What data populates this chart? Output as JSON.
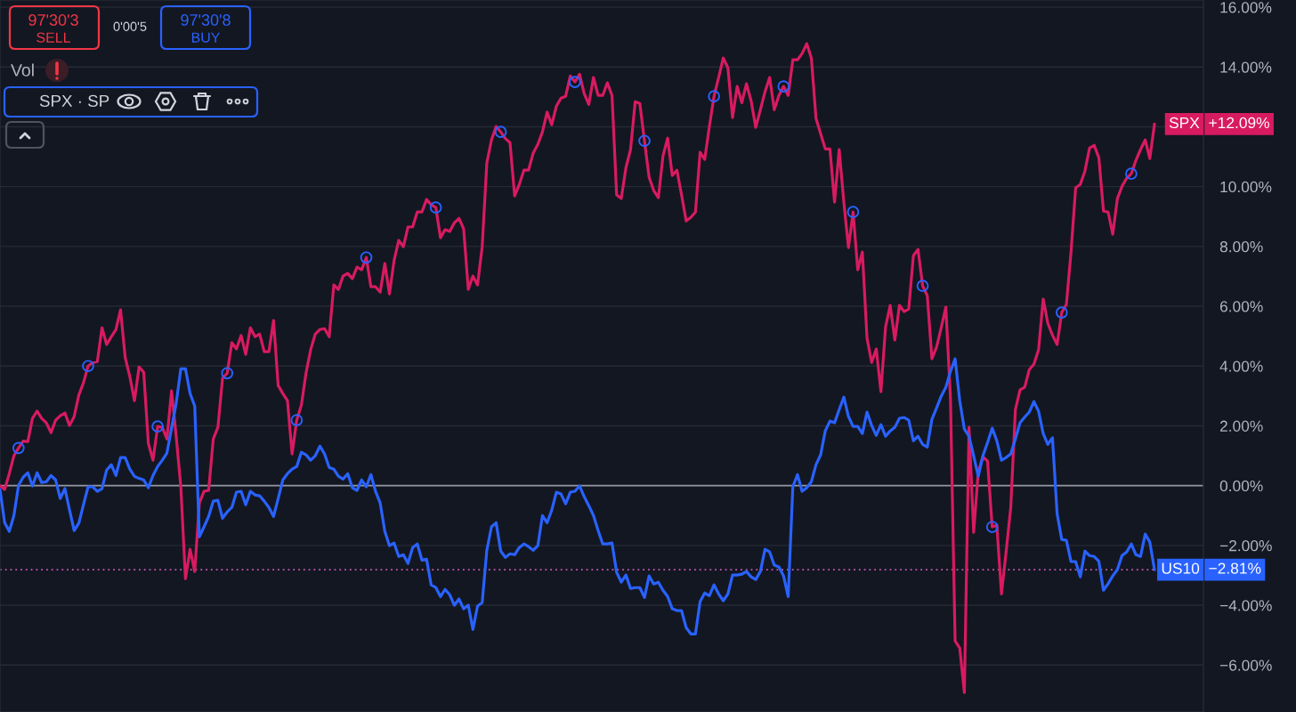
{
  "chart_data": {
    "type": "line",
    "categories": [
      null,
      null,
      null,
      null,
      null,
      null,
      null,
      null,
      null,
      null,
      null,
      null,
      null,
      null,
      null,
      null,
      null,
      null,
      null,
      null,
      null,
      null,
      null,
      null,
      null,
      null,
      null,
      null,
      null,
      null,
      null,
      null,
      null,
      null,
      null,
      null,
      null,
      null,
      null,
      null,
      null,
      null,
      null,
      null,
      null,
      null,
      null,
      null,
      null,
      null,
      null,
      null,
      null,
      null,
      null,
      null,
      null,
      null,
      null,
      null,
      null,
      null,
      null,
      null,
      null,
      null,
      null,
      null,
      null,
      null,
      null,
      null,
      null,
      null,
      null,
      null,
      null,
      null,
      null,
      null,
      null,
      null,
      null,
      null,
      null,
      null,
      null,
      null,
      null,
      null,
      null,
      null,
      null,
      null,
      null,
      null,
      null,
      null,
      null,
      null,
      null,
      null,
      null,
      null,
      null,
      null,
      null,
      null,
      null,
      null,
      null,
      null,
      null,
      null,
      null,
      null,
      null,
      null,
      null,
      null,
      null,
      null,
      null,
      null,
      null,
      null,
      null,
      null,
      null,
      null,
      null,
      null,
      null,
      null,
      null,
      null,
      null,
      null,
      null,
      null,
      null,
      null,
      null,
      null,
      null,
      null,
      null,
      null,
      null,
      null,
      null,
      null,
      null,
      null,
      null,
      null,
      null,
      null,
      null,
      null,
      null,
      null,
      null,
      null,
      null,
      null,
      null,
      null,
      null,
      null,
      null,
      null,
      null,
      null,
      null,
      null,
      null,
      null,
      null,
      null,
      null,
      null,
      null,
      null,
      null,
      null,
      null,
      null,
      null,
      null,
      null,
      null,
      null,
      null,
      null,
      null,
      null,
      null,
      null,
      null,
      null,
      null,
      null,
      null,
      null,
      null,
      null,
      null,
      null,
      null,
      null,
      null,
      null,
      null,
      null,
      null,
      null,
      null,
      null,
      null,
      null,
      null,
      null,
      null,
      null,
      null,
      null,
      null,
      null,
      null,
      null,
      null,
      null,
      null,
      null,
      null,
      null,
      null,
      null,
      null,
      null,
      null,
      null,
      null,
      null,
      null,
      null,
      null,
      null,
      null
    ],
    "series": [
      {
        "name": "SPX",
        "color": "#d81b60",
        "values": [
          0.0,
          -0.13,
          0.4,
          1.0,
          1.26,
          1.49,
          1.47,
          2.25,
          2.49,
          2.25,
          2.1,
          1.77,
          2.19,
          2.34,
          2.43,
          2.01,
          2.31,
          3.03,
          3.44,
          4.0,
          4.11,
          4.15,
          5.28,
          4.72,
          4.98,
          5.22,
          5.88,
          4.29,
          3.65,
          2.84,
          3.97,
          3.79,
          1.41,
          0.85,
          1.98,
          1.95,
          1.56,
          3.17,
          1.65,
          -0.04,
          -3.11,
          -2.13,
          -2.87,
          -0.58,
          -0.19,
          -0.16,
          1.56,
          1.95,
          3.59,
          3.76,
          4.78,
          4.57,
          5.02,
          4.39,
          5.28,
          4.98,
          5.07,
          4.48,
          4.48,
          5.52,
          3.35,
          3.08,
          2.84,
          1.06,
          2.19,
          2.69,
          3.76,
          4.54,
          5.07,
          5.22,
          5.25,
          4.98,
          6.71,
          6.56,
          7.01,
          7.1,
          6.92,
          7.31,
          7.22,
          7.63,
          6.65,
          6.65,
          6.47,
          7.43,
          6.41,
          7.53,
          8.2,
          7.99,
          8.65,
          8.65,
          9.15,
          9.15,
          9.57,
          9.39,
          9.3,
          8.29,
          8.56,
          8.5,
          8.79,
          8.94,
          8.59,
          6.56,
          7.01,
          6.71,
          7.99,
          10.79,
          11.56,
          12.01,
          11.83,
          11.61,
          11.47,
          9.69,
          10.07,
          10.55,
          10.55,
          11.12,
          11.41,
          11.83,
          12.49,
          12.07,
          12.69,
          12.96,
          13.02,
          13.7,
          13.5,
          13.76,
          13.11,
          12.75,
          13.65,
          13.05,
          13.05,
          13.47,
          13.05,
          9.72,
          9.6,
          10.63,
          11.24,
          12.84,
          12.78,
          11.53,
          10.31,
          9.87,
          9.63,
          11.03,
          11.62,
          10.37,
          10.55,
          9.72,
          8.85,
          8.97,
          9.15,
          11.15,
          10.91,
          12.01,
          13.02,
          13.65,
          14.3,
          13.97,
          12.31,
          13.35,
          12.81,
          13.44,
          12.87,
          11.98,
          12.57,
          13.17,
          13.65,
          12.57,
          13.05,
          13.35,
          13.05,
          14.24,
          14.24,
          14.45,
          14.78,
          14.3,
          12.28,
          11.77,
          11.26,
          11.26,
          9.48,
          11.24,
          9.48,
          7.96,
          9.15,
          7.22,
          7.81,
          4.93,
          4.12,
          4.57,
          3.14,
          5.31,
          6.03,
          4.87,
          6.03,
          5.82,
          5.91,
          7.69,
          7.9,
          6.68,
          6.35,
          4.24,
          4.63,
          5.28,
          5.97,
          2.93,
          -5.19,
          -5.43,
          -6.92,
          1.95,
          -1.56,
          0.46,
          0.97,
          0.82,
          -1.38,
          -1.32,
          -3.62,
          -2.22,
          -0.73,
          2.54,
          3.2,
          3.29,
          3.88,
          4.06,
          4.54,
          6.24,
          5.43,
          5.03,
          4.72,
          5.79,
          6.06,
          7.81,
          9.96,
          10.07,
          10.52,
          11.29,
          11.38,
          10.97,
          9.18,
          9.15,
          8.41,
          9.6,
          10.01,
          10.28,
          10.43,
          10.88,
          11.24,
          11.56,
          10.94,
          12.09
        ]
      },
      {
        "name": "US10",
        "color": "#2962ff",
        "values": [
          -0.13,
          -1.24,
          -1.53,
          -1.0,
          0.01,
          0.28,
          0.43,
          -0.01,
          0.43,
          0.1,
          0.13,
          0.34,
          0.19,
          -0.43,
          -0.1,
          -0.82,
          -1.5,
          -1.26,
          -0.64,
          -0.04,
          -0.04,
          -0.19,
          -0.1,
          0.52,
          0.7,
          0.34,
          0.94,
          0.94,
          0.55,
          0.31,
          0.24,
          0.19,
          -0.07,
          0.34,
          0.64,
          0.85,
          1.09,
          1.92,
          2.75,
          3.91,
          3.91,
          3.08,
          2.66,
          -1.71,
          -1.38,
          -1.03,
          -0.52,
          -0.49,
          -1.09,
          -0.88,
          -0.73,
          -0.22,
          -0.19,
          -0.64,
          -0.19,
          -0.31,
          -0.34,
          -0.52,
          -0.73,
          -1.03,
          -0.43,
          0.19,
          0.4,
          0.55,
          0.64,
          1.12,
          1.03,
          0.85,
          1.0,
          1.32,
          1.06,
          0.61,
          0.55,
          0.31,
          0.22,
          0.4,
          -0.07,
          -0.16,
          0.19,
          -0.04,
          0.37,
          -0.19,
          -0.58,
          -1.53,
          -2.01,
          -1.92,
          -2.37,
          -2.31,
          -2.6,
          -2.07,
          -1.95,
          -2.49,
          -2.46,
          -3.32,
          -3.41,
          -3.71,
          -3.47,
          -3.65,
          -4.0,
          -3.79,
          -4.12,
          -4.0,
          -4.81,
          -4.03,
          -3.91,
          -2.16,
          -1.38,
          -1.24,
          -2.19,
          -2.4,
          -2.28,
          -2.31,
          -2.07,
          -1.95,
          -2.04,
          -2.16,
          -2.01,
          -1.0,
          -1.24,
          -0.82,
          -0.22,
          -0.28,
          -0.61,
          -0.22,
          -0.19,
          -0.01,
          -0.37,
          -0.67,
          -1.0,
          -1.5,
          -1.95,
          -1.95,
          -1.92,
          -2.9,
          -3.23,
          -2.99,
          -3.44,
          -3.41,
          -3.41,
          -3.74,
          -3.02,
          -3.29,
          -3.23,
          -3.5,
          -3.71,
          -4.12,
          -4.18,
          -4.18,
          -4.75,
          -4.96,
          -4.96,
          -3.88,
          -3.59,
          -3.68,
          -3.32,
          -3.62,
          -3.85,
          -3.62,
          -2.99,
          -2.99,
          -2.96,
          -2.87,
          -3.05,
          -3.14,
          -2.87,
          -2.13,
          -2.22,
          -2.66,
          -2.72,
          -3.02,
          -3.71,
          -0.04,
          0.37,
          -0.19,
          -0.07,
          0.13,
          0.7,
          1.03,
          1.83,
          2.16,
          2.1,
          2.54,
          2.96,
          2.31,
          1.98,
          1.98,
          1.74,
          2.46,
          2.01,
          1.68,
          2.04,
          1.65,
          1.83,
          1.95,
          2.25,
          2.28,
          2.19,
          1.5,
          1.65,
          1.38,
          1.29,
          2.22,
          2.6,
          2.99,
          3.29,
          3.82,
          4.24,
          2.84,
          1.89,
          1.65,
          1.0,
          0.31,
          1.0,
          1.44,
          1.92,
          1.5,
          0.85,
          0.94,
          1.06,
          1.56,
          2.1,
          2.29,
          2.46,
          2.81,
          2.49,
          1.74,
          1.38,
          1.6,
          -0.94,
          -1.8,
          -1.83,
          -2.54,
          -2.54,
          -3.05,
          -2.19,
          -2.34,
          -2.37,
          -2.53,
          -3.5,
          -3.28,
          -3.02,
          -2.81,
          -2.34,
          -2.22,
          -1.95,
          -2.31,
          -2.37,
          -1.62,
          -1.89,
          -2.81
        ]
      },
      {
        "type": "scatter",
        "color": "#2962ff",
        "marker": "circle",
        "values": [
          null,
          null,
          null,
          null,
          1.26,
          null,
          null,
          null,
          null,
          null,
          null,
          null,
          null,
          null,
          null,
          null,
          null,
          null,
          null,
          4.0,
          null,
          null,
          null,
          null,
          null,
          null,
          null,
          null,
          null,
          null,
          null,
          null,
          null,
          null,
          1.98,
          null,
          null,
          null,
          null,
          null,
          null,
          null,
          null,
          null,
          null,
          null,
          null,
          null,
          null,
          3.76,
          null,
          null,
          null,
          null,
          null,
          null,
          null,
          null,
          null,
          null,
          null,
          null,
          null,
          null,
          2.19,
          null,
          null,
          null,
          null,
          null,
          null,
          null,
          null,
          null,
          null,
          null,
          null,
          null,
          null,
          7.63,
          null,
          null,
          null,
          null,
          null,
          null,
          null,
          null,
          null,
          null,
          null,
          null,
          null,
          null,
          9.3,
          null,
          null,
          null,
          null,
          null,
          null,
          null,
          null,
          null,
          null,
          null,
          null,
          null,
          11.83,
          null,
          null,
          null,
          null,
          null,
          null,
          null,
          null,
          null,
          null,
          null,
          null,
          null,
          null,
          null,
          13.5,
          null,
          null,
          null,
          null,
          null,
          null,
          null,
          null,
          null,
          null,
          null,
          null,
          null,
          null,
          11.53,
          null,
          null,
          null,
          null,
          null,
          null,
          null,
          null,
          null,
          null,
          null,
          null,
          null,
          null,
          13.02,
          null,
          null,
          null,
          null,
          null,
          null,
          null,
          null,
          null,
          null,
          null,
          null,
          null,
          null,
          13.35,
          null,
          null,
          null,
          null,
          null,
          null,
          null,
          null,
          null,
          null,
          null,
          null,
          null,
          null,
          9.15,
          null,
          null,
          null,
          null,
          null,
          null,
          null,
          null,
          null,
          null,
          null,
          null,
          null,
          null,
          6.68,
          null,
          null,
          null,
          null,
          null,
          null,
          null,
          null,
          null,
          null,
          null,
          null,
          null,
          null,
          -1.38,
          null,
          null,
          null,
          null,
          null,
          null,
          null,
          null,
          null,
          null,
          null,
          null,
          null,
          null,
          5.79,
          null,
          null,
          null,
          null,
          null,
          null,
          null,
          null,
          null,
          null,
          null,
          null,
          null,
          null,
          10.43,
          null,
          null,
          null,
          null,
          null
        ]
      }
    ],
    "ylim": [
      -7.57,
      16.24
    ],
    "yticks": [
      {
        "value": -6,
        "label": "−6.00%"
      },
      {
        "value": -4,
        "label": "−4.00%"
      },
      {
        "value": -2,
        "label": "−2.00%"
      },
      {
        "value": 0,
        "label": "0.00%"
      },
      {
        "value": 2,
        "label": "2.00%"
      },
      {
        "value": 4,
        "label": "4.00%"
      },
      {
        "value": 6,
        "label": "6.00%"
      },
      {
        "value": 8,
        "label": "8.00%"
      },
      {
        "value": 10,
        "label": "10.00%"
      },
      {
        "value": 12,
        "label": null
      },
      {
        "value": 14,
        "label": "14.00%"
      },
      {
        "value": 16,
        "label": "16.00%"
      }
    ],
    "tick_labels": "y",
    "grid": "y",
    "legend": "right",
    "ref_lines": [
      {
        "axis": "y",
        "value": 0,
        "color": "#9598a1"
      },
      {
        "axis": "y",
        "value": -2.81,
        "label": "−2.81%",
        "color": "#c45bb5",
        "line_style": "dotted"
      }
    ],
    "annotations": [
      "97'30'3",
      "SELL",
      "0'00'5",
      "97'30'8",
      "BUY",
      "Vol",
      "SPX · SP",
      "+12.09%"
    ]
  }
}
